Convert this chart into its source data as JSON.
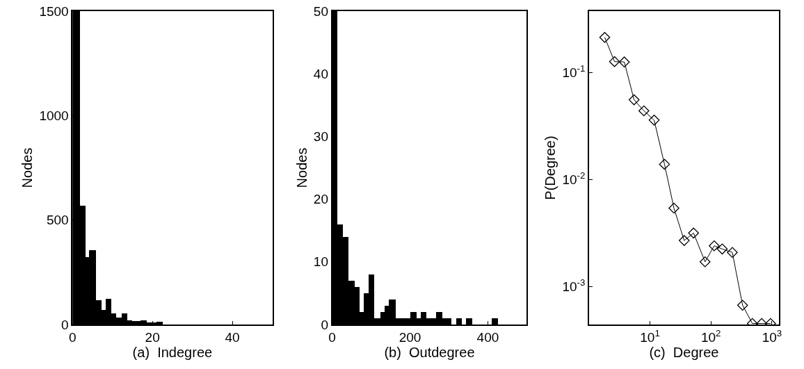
{
  "chart_data": [
    {
      "type": "histogram",
      "xlabel": "(a)  Indegree",
      "ylabel": "Nodes",
      "color": "#000000",
      "bins": [
        0,
        2.0,
        3.3,
        4.2,
        6.0,
        7.3,
        8.3,
        9.7,
        11.0,
        12.3,
        13.7,
        14.9,
        17.1,
        18.6,
        21.1,
        22.6
      ],
      "values": [
        1500,
        570,
        324,
        355,
        115,
        71,
        123,
        53,
        33,
        52,
        20,
        16,
        19,
        11,
        13
      ],
      "xlim": [
        0,
        50
      ],
      "xticks": [
        0,
        20,
        40
      ],
      "ylim": [
        0,
        1500
      ],
      "yticks": [
        0,
        500,
        1000,
        1500
      ]
    },
    {
      "type": "histogram",
      "xlabel": "(b)  Outdegree",
      "ylabel": "Nodes",
      "color": "#000000",
      "bins": [
        0,
        11.9,
        26.7,
        41.5,
        56.3,
        69.9,
        81.2,
        93.6,
        107.9,
        122.7,
        133.3,
        145.2,
        161.8,
        200.3,
        216.3,
        227.0,
        241.8,
        265.5,
        281.5,
        305.2,
        318.2,
        333.0,
        343.7,
        359.7,
        410.0,
        424.9
      ],
      "values": [
        50,
        16,
        14,
        7,
        6,
        2,
        5,
        8,
        1,
        2,
        3,
        4,
        1,
        2,
        1,
        2,
        1,
        2,
        1,
        0,
        1,
        0,
        1,
        0,
        1
      ],
      "xlim": [
        0,
        500
      ],
      "xticks": [
        0,
        200,
        400
      ],
      "ylim": [
        0,
        50
      ],
      "yticks": [
        0,
        10,
        20,
        30,
        40,
        50
      ]
    },
    {
      "type": "line",
      "xlabel": "(c)  Degree",
      "ylabel": "P(Degree)",
      "log": "xy",
      "marker": "diamond",
      "line_style": "solid",
      "series": [
        {
          "color": "#000000",
          "x": [
            1.81,
            2.62,
            3.79,
            5.48,
            7.94,
            11.7,
            17.3,
            24.7,
            36.4,
            51.8,
            80,
            113,
            153,
            224,
            330,
            477,
            679,
            950
          ],
          "values": [
            0.214,
            0.127,
            0.126,
            0.0558,
            0.044,
            0.036,
            0.0139,
            0.0054,
            0.00269,
            0.00316,
            0.0017,
            0.0024,
            0.00224,
            0.00208,
            0.000667,
            0.00045,
            0.00045,
            0.00045
          ]
        }
      ],
      "xlim": [
        1,
        1300
      ],
      "xticks": [
        {
          "value": 10,
          "label": "10$^{1}$"
        },
        {
          "value": 100,
          "label": "10$^{2}$"
        },
        {
          "value": 1000,
          "label": "10$^{3}$"
        }
      ],
      "ylim": [
        0.00044,
        0.377
      ],
      "yticks": [
        {
          "value": 0.001,
          "label": "10$^{-3}$"
        },
        {
          "value": 0.01,
          "label": "10$^{-2}$"
        },
        {
          "value": 0.1,
          "label": "10$^{-1}$"
        }
      ]
    }
  ]
}
